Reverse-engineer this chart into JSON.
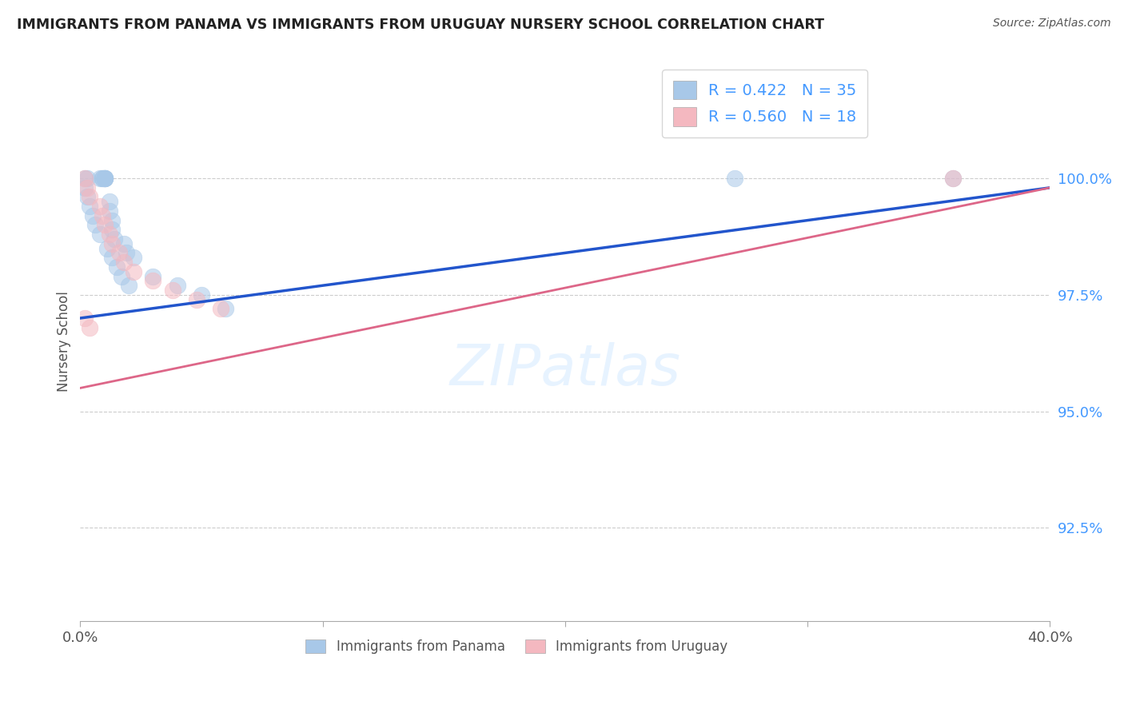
{
  "title": "IMMIGRANTS FROM PANAMA VS IMMIGRANTS FROM URUGUAY NURSERY SCHOOL CORRELATION CHART",
  "source": "Source: ZipAtlas.com",
  "ylabel": "Nursery School",
  "ytick_labels": [
    "100.0%",
    "97.5%",
    "95.0%",
    "92.5%"
  ],
  "ytick_values": [
    1.0,
    0.975,
    0.95,
    0.925
  ],
  "xlim": [
    0.0,
    0.4
  ],
  "ylim": [
    0.905,
    1.025
  ],
  "legend_label1": "Immigrants from Panama",
  "legend_label2": "Immigrants from Uruguay",
  "R1": 0.422,
  "N1": 35,
  "R2": 0.56,
  "N2": 18,
  "color_panama": "#a8c8e8",
  "color_uruguay": "#f4b8c0",
  "color_panama_line": "#2255cc",
  "color_uruguay_line": "#dd6688",
  "background_color": "#ffffff",
  "panama_x": [
    0.002,
    0.003,
    0.008,
    0.009,
    0.009,
    0.01,
    0.01,
    0.01,
    0.01,
    0.01,
    0.012,
    0.012,
    0.013,
    0.013,
    0.014,
    0.018,
    0.019,
    0.022,
    0.03,
    0.04,
    0.05,
    0.06,
    0.27,
    0.36,
    0.002,
    0.003,
    0.004,
    0.005,
    0.006,
    0.008,
    0.011,
    0.013,
    0.015,
    0.017,
    0.02
  ],
  "panama_y": [
    1.0,
    1.0,
    1.0,
    1.0,
    1.0,
    1.0,
    1.0,
    1.0,
    1.0,
    1.0,
    0.995,
    0.993,
    0.991,
    0.989,
    0.987,
    0.986,
    0.984,
    0.983,
    0.979,
    0.977,
    0.975,
    0.972,
    1.0,
    1.0,
    0.998,
    0.996,
    0.994,
    0.992,
    0.99,
    0.988,
    0.985,
    0.983,
    0.981,
    0.979,
    0.977
  ],
  "uruguay_x": [
    0.002,
    0.003,
    0.004,
    0.008,
    0.009,
    0.01,
    0.012,
    0.013,
    0.016,
    0.018,
    0.022,
    0.03,
    0.038,
    0.048,
    0.058,
    0.36,
    0.002,
    0.004
  ],
  "uruguay_y": [
    1.0,
    0.998,
    0.996,
    0.994,
    0.992,
    0.99,
    0.988,
    0.986,
    0.984,
    0.982,
    0.98,
    0.978,
    0.976,
    0.974,
    0.972,
    1.0,
    0.97,
    0.968
  ],
  "line_panama_x0": 0.0,
  "line_panama_x1": 0.4,
  "line_panama_y0": 0.97,
  "line_panama_y1": 0.998,
  "line_uruguay_x0": 0.0,
  "line_uruguay_x1": 0.4,
  "line_uruguay_y0": 0.955,
  "line_uruguay_y1": 0.998
}
